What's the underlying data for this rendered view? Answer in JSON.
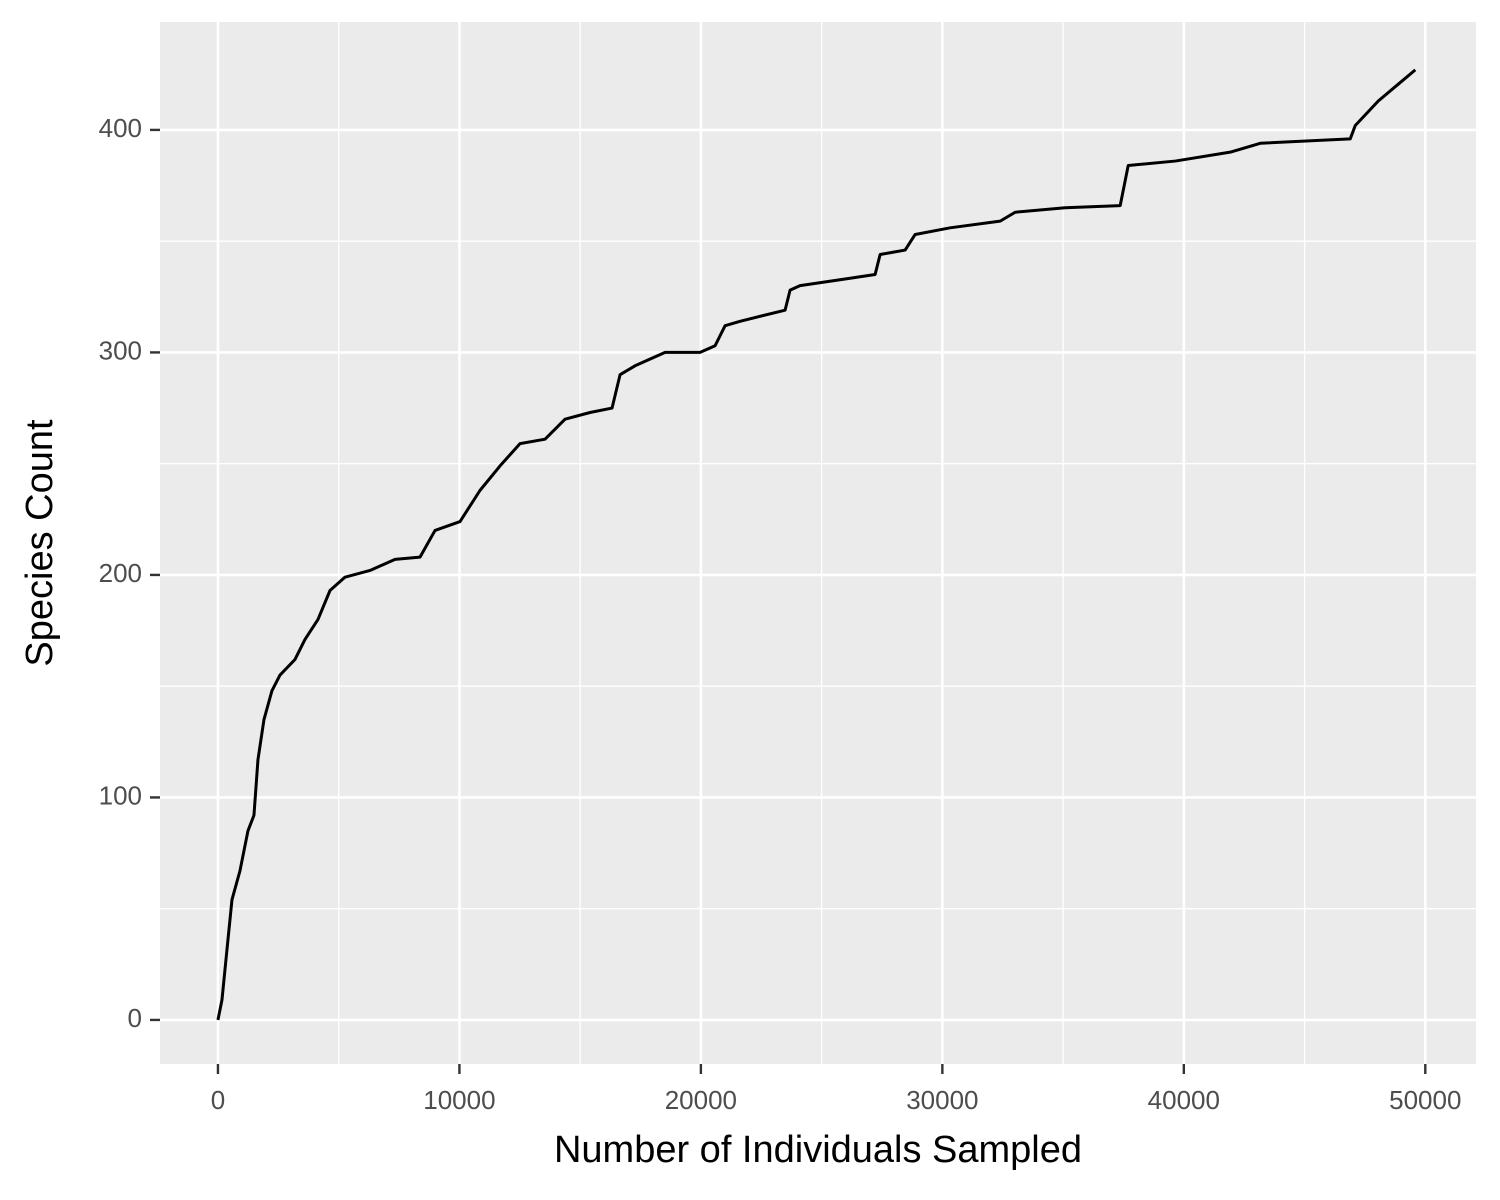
{
  "chart_data": {
    "type": "line",
    "x_label": "Number of Individuals Sampled",
    "y_label": "Species Count",
    "x": [
      0,
      166,
      331,
      580,
      911,
      1243,
      1491,
      1657,
      1906,
      2237,
      2569,
      3190,
      3604,
      4143,
      4640,
      5261,
      6297,
      7332,
      8368,
      8990,
      10025,
      10853,
      11682,
      12510,
      13546,
      14374,
      15410,
      16321,
      16653,
      17274,
      18517,
      19967,
      20588,
      21002,
      21623,
      23487,
      23694,
      24108,
      25972,
      27215,
      27423,
      28459,
      28873,
      30323,
      32394,
      33016,
      35087,
      37365,
      37697,
      39644,
      41922,
      43165,
      46893,
      47100,
      48053,
      49586
    ],
    "series": [
      {
        "color": "#000000",
        "values": [
          0,
          9,
          27,
          54,
          67,
          85,
          92,
          117,
          135,
          148,
          155,
          162,
          171,
          180,
          193,
          199,
          202,
          207,
          208,
          220,
          224,
          238,
          249,
          259,
          261,
          270,
          273,
          275,
          290,
          294,
          300,
          300,
          303,
          312,
          314,
          319,
          328,
          330,
          333,
          335,
          344,
          346,
          353,
          356,
          359,
          363,
          365,
          366,
          384,
          386,
          390,
          394,
          396,
          402,
          413,
          427
        ]
      }
    ],
    "xlim": [
      -2400,
      52100
    ],
    "ylim": [
      -19.8,
      448.5
    ],
    "xticks": [
      0,
      10000,
      20000,
      30000,
      40000,
      50000
    ],
    "yticks": [
      0,
      100,
      200,
      300,
      400
    ],
    "x_minor_grid": [
      5000,
      15000,
      25000,
      35000,
      45000
    ],
    "y_minor_grid": [
      50,
      150,
      250,
      350
    ],
    "grid": true
  }
}
